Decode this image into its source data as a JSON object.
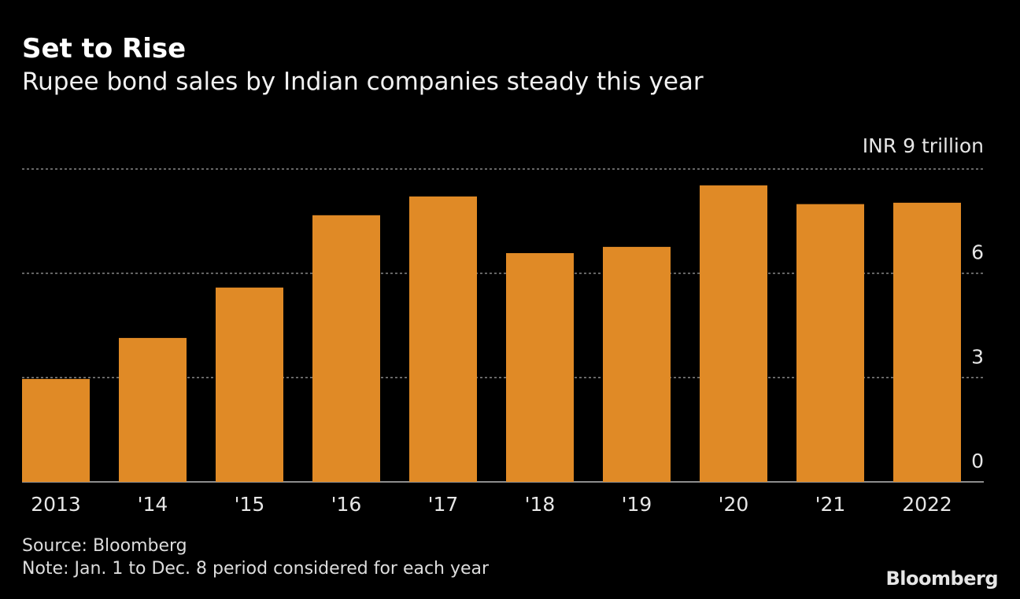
{
  "chart_data": {
    "type": "bar",
    "title": "Set to Rise",
    "subtitle": "Rupee bond sales by Indian companies steady this year",
    "unit_label": "INR 9  trillion",
    "categories": [
      "2013",
      "'14",
      "'15",
      "'16",
      "'17",
      "'18",
      "'19",
      "'20",
      "'21",
      "2022"
    ],
    "values": [
      2.96,
      4.14,
      5.59,
      7.67,
      8.21,
      6.58,
      6.76,
      8.53,
      7.99,
      8.03
    ],
    "ylim": [
      0,
      9
    ],
    "yticks": [
      0,
      3,
      6,
      9
    ],
    "ytick_labels": [
      "0",
      "3",
      "6",
      ""
    ],
    "grid": true,
    "bar_color": "#e08a26",
    "source": "Source: Bloomberg",
    "note": "Note: Jan. 1 to Dec. 8 period considered for each year"
  },
  "brand": "Bloomberg"
}
